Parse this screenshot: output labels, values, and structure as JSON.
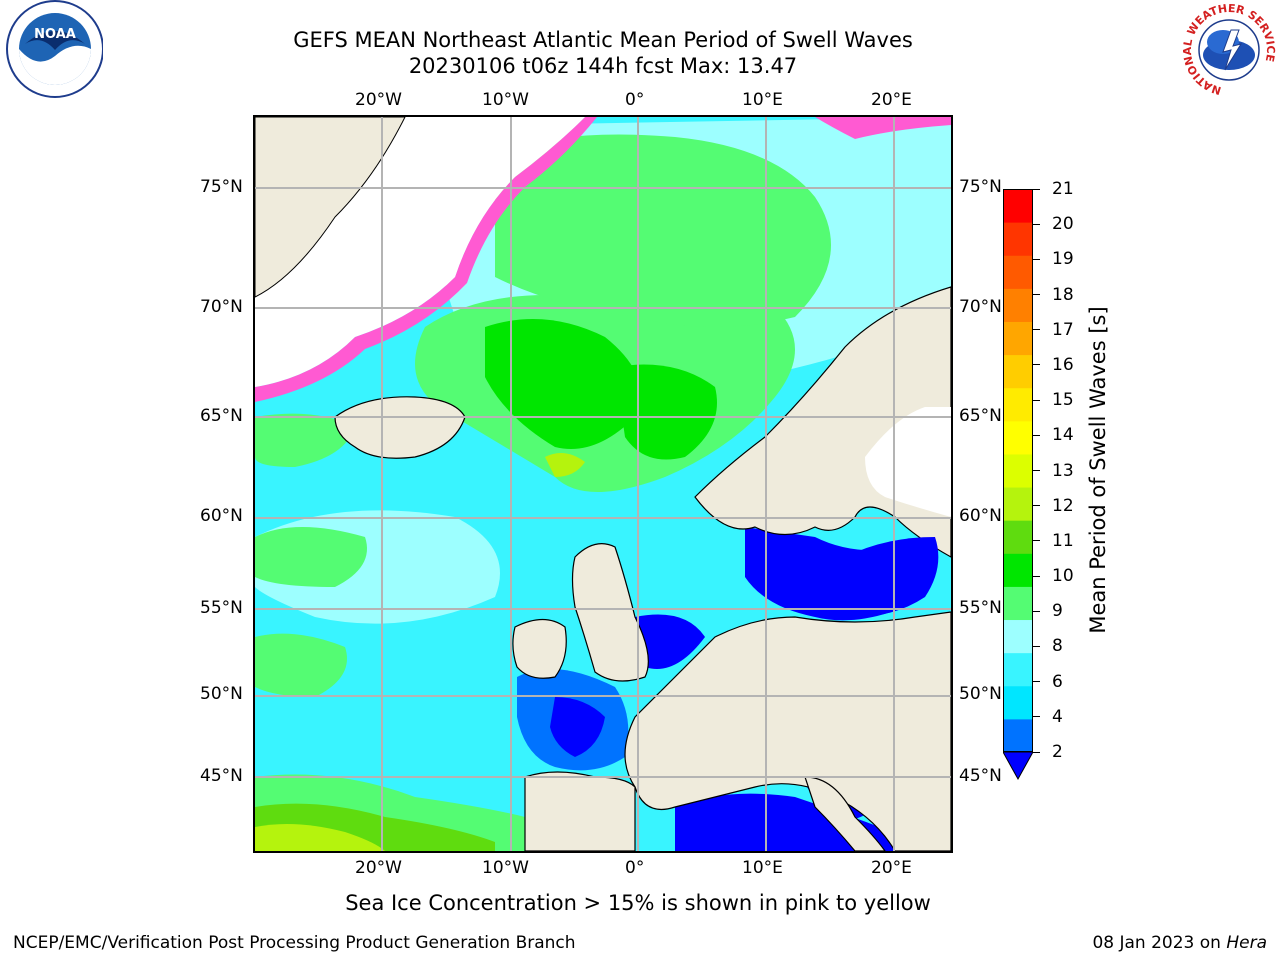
{
  "title": {
    "line1": "GEFS MEAN Northeast Atlantic Mean Period of Swell Waves",
    "line2": "20230106 t06z 144h fcst   Max: 13.47"
  },
  "logos": {
    "left": "NOAA",
    "right_ring_text": "NATIONAL WEATHER SERVICE"
  },
  "map": {
    "lon_labels": [
      "20°W",
      "10°W",
      "0°",
      "10°E",
      "20°E"
    ],
    "lat_labels": [
      "75°N",
      "70°N",
      "65°N",
      "60°N",
      "55°N",
      "50°N",
      "45°N"
    ],
    "land_color": "#efebdc",
    "ocean_color": "#39f4ff",
    "grid_color": "#b4b4b4"
  },
  "colorbar": {
    "label": "Mean Period of Swell Waves [s]",
    "ticks": [
      "21",
      "20",
      "19",
      "18",
      "17",
      "16",
      "15",
      "14",
      "13",
      "12",
      "11",
      "10",
      "9",
      "8",
      "6",
      "4",
      "2"
    ],
    "colors_bottom_to_top": [
      "#0073ff",
      "#00e6ff",
      "#39f4ff",
      "#9dffff",
      "#54fc73",
      "#00e600",
      "#5fdc0f",
      "#b5f30d",
      "#dcff00",
      "#ffff00",
      "#ffeb00",
      "#ffcd00",
      "#ffa600",
      "#ff8000",
      "#ff5a00",
      "#ff3500",
      "#ff0000"
    ],
    "extend_color": "#0000ff"
  },
  "caption": "Sea Ice Concentration > 15% is shown in pink to yellow",
  "footer": {
    "left": "NCEP/EMC/Verification Post Processing Product Generation Branch",
    "right_date": "08 Jan 2023 on ",
    "right_host": "Hera"
  }
}
